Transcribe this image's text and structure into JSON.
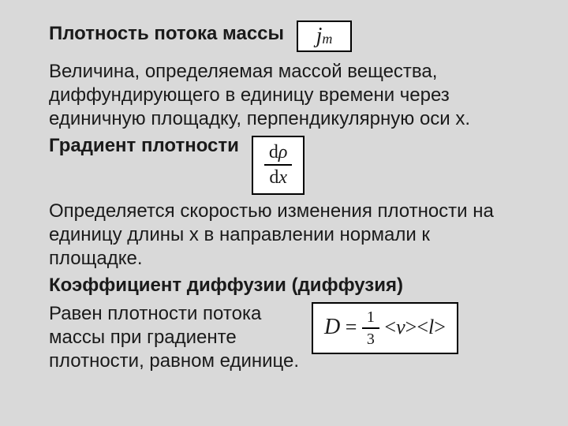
{
  "colors": {
    "background": "#d9d9d9",
    "text": "#1a1a1a",
    "formula_bg": "#ffffff",
    "formula_border": "#000000"
  },
  "typography": {
    "body_font": "Arial",
    "body_size_pt": 18,
    "formula_font": "Times New Roman",
    "formula_size_pt": 20,
    "heading_weight": 700
  },
  "section1": {
    "heading": "Плотность потока массы",
    "formula": {
      "symbol": "j",
      "subscript": "m"
    },
    "body": "Величина, определяемая массой вещества, диффундирующего в единицу времени через единичную площадку, перпендикулярную оси х."
  },
  "section2": {
    "heading": "Градиент плотности",
    "formula": {
      "numerator_op": "d",
      "numerator_var": "ρ",
      "denominator_op": "d",
      "denominator_var": "x"
    },
    "body": "Определяется скоростью изменения плотности на единицу длины х в направлении нормали к площадке."
  },
  "section3": {
    "heading": "Коэффициент диффузии (диффузия)",
    "body_lines": [
      "Равен плотности потока",
      "массы при градиенте",
      "плотности, равном единице."
    ],
    "formula": {
      "lhs": "D",
      "eq": "=",
      "frac_num": "1",
      "frac_den": "3",
      "bracket_open": "<",
      "bracket_close": ">",
      "var1": "v",
      "var2": "l"
    }
  }
}
